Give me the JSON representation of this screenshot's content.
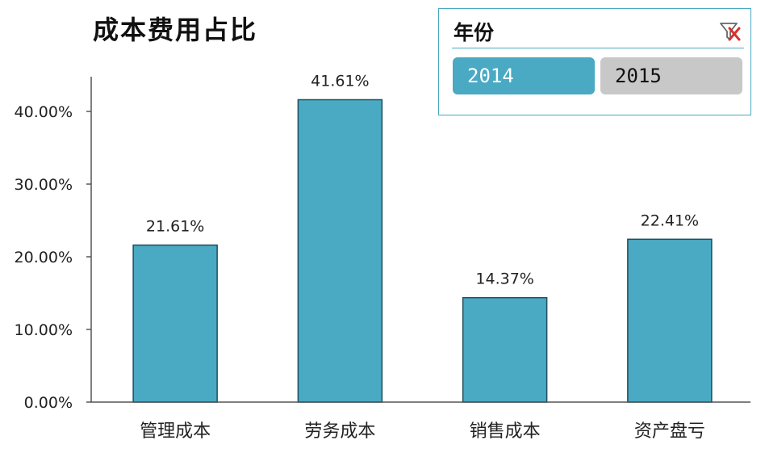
{
  "chart_data": {
    "type": "bar",
    "title": "成本费用占比",
    "categories": [
      "管理成本",
      "劳务成本",
      "销售成本",
      "资产盘亏"
    ],
    "values": [
      21.61,
      41.61,
      14.37,
      22.41
    ],
    "data_labels": [
      "21.61%",
      "41.61%",
      "14.37%",
      "22.41%"
    ],
    "yticks": [
      0,
      10,
      20,
      30,
      40
    ],
    "ytick_labels": [
      "0.00%",
      "10.00%",
      "20.00%",
      "30.00%",
      "40.00%"
    ],
    "ylim": [
      0,
      45
    ],
    "grid": false,
    "bar_color": "#4aa9c3",
    "bar_edge_color": "#1f4e5e"
  },
  "slicer": {
    "title": "年份",
    "items": [
      {
        "label": "2014",
        "selected": true
      },
      {
        "label": "2015",
        "selected": false
      }
    ],
    "selected_color": "#4aa9c3",
    "unselected_color": "#c8c8c8",
    "clear_icon": "filter-clear-icon"
  }
}
